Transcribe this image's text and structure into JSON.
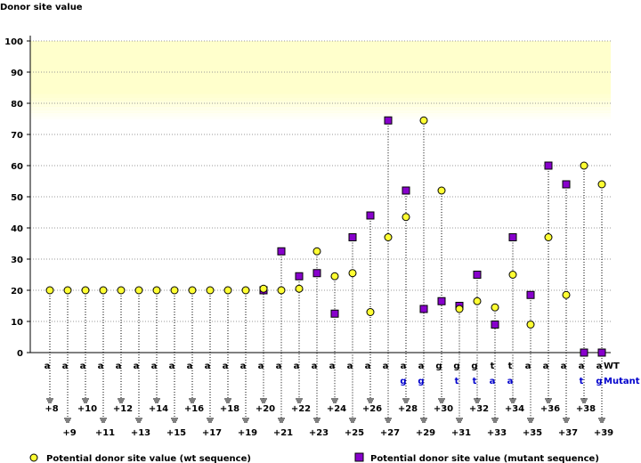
{
  "chart_data": {
    "type": "scatter",
    "ylabel": "Donor site value",
    "ylim": [
      0,
      100
    ],
    "yticks": [
      0,
      10,
      20,
      30,
      40,
      50,
      60,
      70,
      80,
      90,
      100
    ],
    "highlight_band": [
      75,
      100
    ],
    "positions": [
      "+8",
      "+9",
      "+10",
      "+11",
      "+12",
      "+13",
      "+14",
      "+15",
      "+16",
      "+17",
      "+18",
      "+19",
      "+20",
      "+21",
      "+22",
      "+23",
      "+24",
      "+25",
      "+26",
      "+27",
      "+28",
      "+29",
      "+30",
      "+31",
      "+32",
      "+33",
      "+34",
      "+35",
      "+36",
      "+37",
      "+38",
      "+39"
    ],
    "wt_bases": [
      "a",
      "a",
      "a",
      "a",
      "a",
      "a",
      "a",
      "a",
      "a",
      "a",
      "a",
      "a",
      "a",
      "a",
      "a",
      "a",
      "a",
      "a",
      "a",
      "a",
      "a",
      "a",
      "g",
      "g",
      "g",
      "t",
      "t",
      "a",
      "a",
      "a",
      "a",
      "a"
    ],
    "mutant_bases": [
      "",
      "",
      "",
      "",
      "",
      "",
      "",
      "",
      "",
      "",
      "",
      "",
      "",
      "",
      "",
      "",
      "",
      "",
      "",
      "",
      "g",
      "g",
      "",
      "t",
      "t",
      "a",
      "a",
      "",
      "",
      "",
      "t",
      "g"
    ],
    "wt_row_label": "WT",
    "mutant_row_label": "Mutant",
    "series": [
      {
        "name": "Potential donor site value (wt sequence)",
        "marker": "circle",
        "color": "#ffff33",
        "values": [
          20,
          20,
          20,
          20,
          20,
          20,
          20,
          20,
          20,
          20,
          20,
          20,
          20.5,
          20,
          20.5,
          32.5,
          24.5,
          25.5,
          13,
          37,
          43.5,
          74.5,
          52,
          14,
          16.5,
          14.5,
          25,
          9,
          37,
          18.5,
          60,
          54
        ]
      },
      {
        "name": "Potential donor site value (mutant sequence)",
        "marker": "square",
        "color": "#8800cc",
        "values": [
          null,
          null,
          null,
          null,
          null,
          null,
          null,
          null,
          null,
          null,
          null,
          null,
          20,
          32.5,
          24.5,
          25.5,
          12.5,
          37,
          44,
          74.5,
          52,
          14,
          16.5,
          15,
          25,
          9,
          37,
          18.5,
          60,
          54,
          0,
          0
        ]
      }
    ]
  }
}
